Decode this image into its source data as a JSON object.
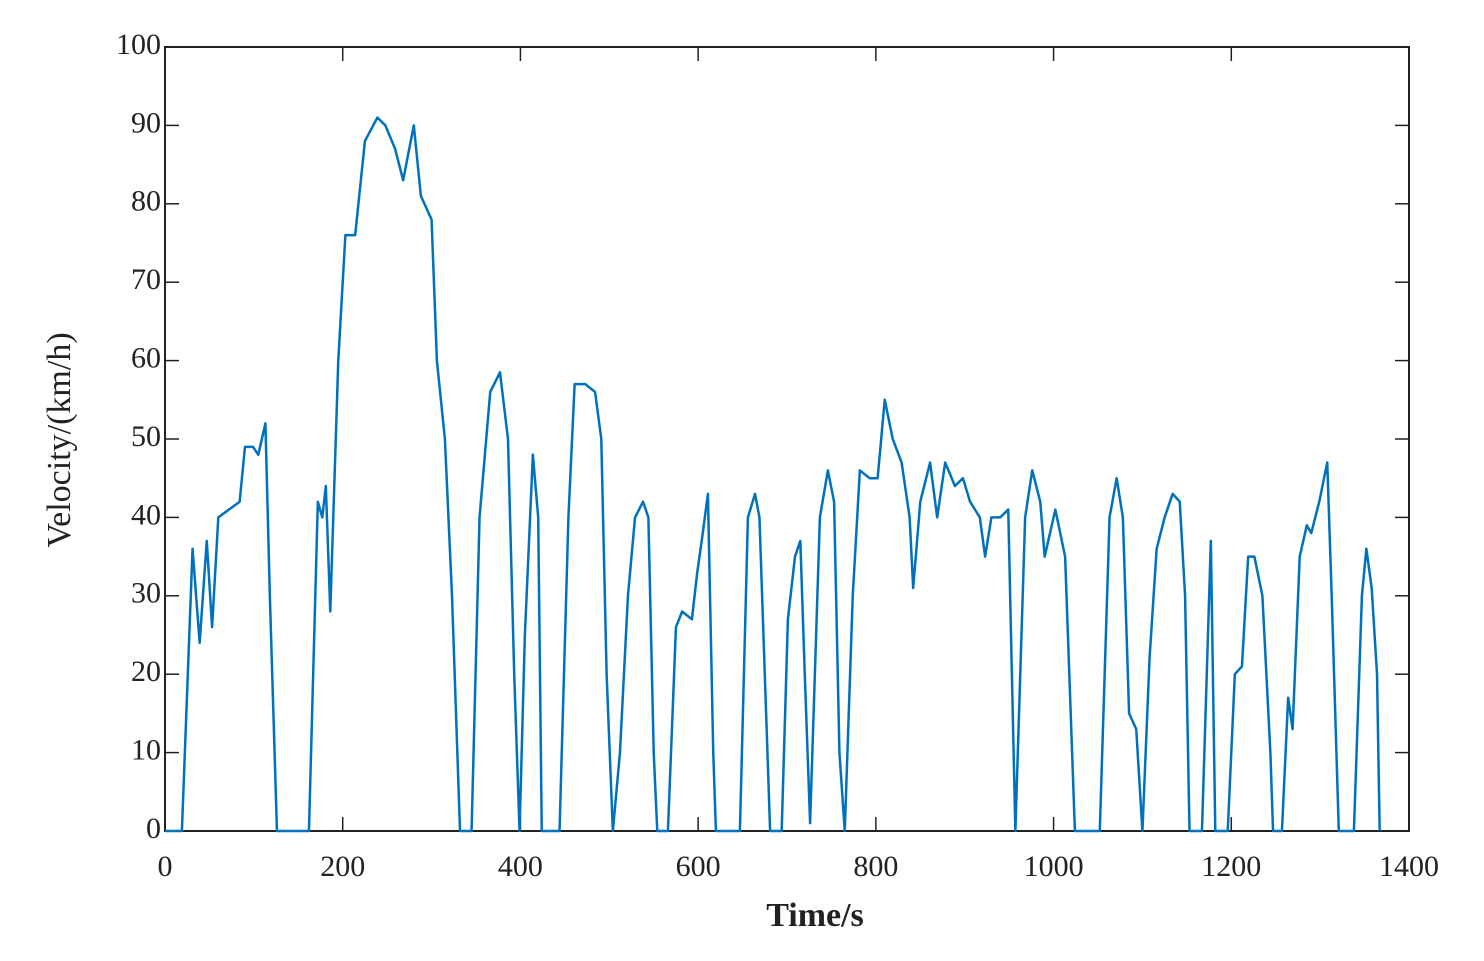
{
  "chart_data": {
    "type": "line",
    "xlabel": "Time/s",
    "ylabel": "Velocity/(km/h)",
    "xlim": [
      0,
      1400
    ],
    "xticks": [
      0,
      200,
      400,
      600,
      800,
      1000,
      1200,
      1400
    ],
    "ylim": [
      0,
      100
    ],
    "yticks": [
      0,
      10,
      20,
      30,
      40,
      50,
      60,
      70,
      80,
      90,
      100
    ],
    "x": [
      0,
      19,
      31,
      39,
      47,
      53,
      60,
      84,
      90,
      99,
      105,
      113,
      118,
      126,
      162,
      172,
      177,
      181,
      186,
      195,
      203,
      214,
      225,
      239,
      248,
      259,
      268,
      280,
      288,
      300,
      306,
      315,
      323,
      332,
      345,
      354,
      366,
      377,
      386,
      393,
      399,
      405,
      414,
      420,
      424,
      444,
      454,
      461,
      473,
      484,
      491,
      497,
      504,
      512,
      521,
      529,
      538,
      544,
      550,
      554,
      566,
      575,
      582,
      593,
      599,
      604,
      611,
      617,
      620,
      647,
      656,
      664,
      669,
      678,
      681,
      694,
      701,
      709,
      715,
      720,
      726,
      737,
      746,
      753,
      759,
      765,
      774,
      782,
      793,
      802,
      810,
      819,
      829,
      838,
      842,
      850,
      861,
      869,
      878,
      889,
      898,
      906,
      917,
      923,
      930,
      940,
      949,
      957,
      968,
      976,
      985,
      990,
      1002,
      1013,
      1024,
      1052,
      1063,
      1071,
      1078,
      1085,
      1093,
      1100,
      1108,
      1116,
      1125,
      1134,
      1142,
      1148,
      1153,
      1167,
      1177,
      1182,
      1196,
      1204,
      1212,
      1219,
      1226,
      1235,
      1244,
      1247,
      1257,
      1264,
      1269,
      1277,
      1285,
      1290,
      1299,
      1308,
      1313,
      1321,
      1338,
      1347,
      1352,
      1358,
      1364,
      1367
    ],
    "series": [
      {
        "name": "Velocity",
        "color": "#0072bd",
        "values": [
          0,
          0,
          36,
          24,
          37,
          26,
          40,
          42,
          49,
          49,
          48,
          52,
          30,
          0,
          0,
          42,
          40,
          44,
          28,
          60,
          76,
          76,
          88,
          91,
          90,
          87,
          83,
          90,
          81,
          78,
          60,
          50,
          30,
          0,
          0,
          40,
          56,
          58.5,
          50,
          20,
          0,
          25,
          48,
          40,
          0,
          0,
          40,
          57,
          57,
          56,
          50,
          20,
          0,
          10,
          30,
          40,
          42,
          40,
          10,
          0,
          0,
          26,
          28,
          27,
          33,
          37,
          43,
          10,
          0,
          0,
          40,
          43,
          40,
          10,
          0,
          0,
          27,
          35,
          37,
          20,
          1,
          40,
          46,
          42,
          10,
          0,
          30,
          46,
          45,
          45,
          55,
          50,
          47,
          40,
          31,
          42,
          47,
          40,
          47,
          44,
          45,
          42,
          40,
          35,
          40,
          40,
          41,
          0,
          40,
          46,
          42,
          35,
          41,
          35,
          0,
          0,
          40,
          45,
          40,
          15,
          13,
          0,
          22,
          36,
          40,
          43,
          42,
          30,
          0,
          0,
          37,
          0,
          0,
          20,
          21,
          35,
          35,
          30,
          10,
          0,
          0,
          17,
          13,
          35,
          39,
          38,
          42,
          47,
          30,
          0,
          0,
          30,
          36,
          31,
          20,
          0
        ]
      }
    ]
  }
}
